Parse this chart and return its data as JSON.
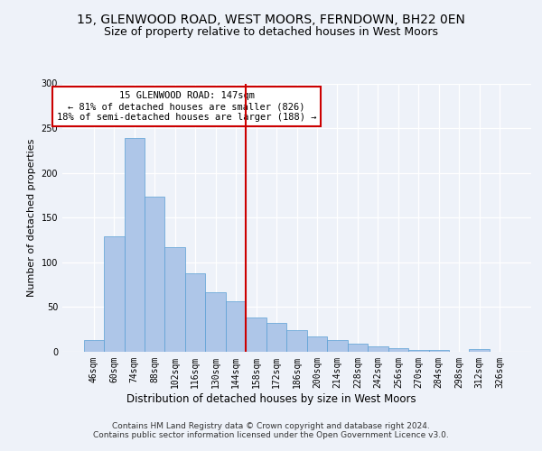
{
  "title1": "15, GLENWOOD ROAD, WEST MOORS, FERNDOWN, BH22 0EN",
  "title2": "Size of property relative to detached houses in West Moors",
  "xlabel": "Distribution of detached houses by size in West Moors",
  "ylabel": "Number of detached properties",
  "footer1": "Contains HM Land Registry data © Crown copyright and database right 2024.",
  "footer2": "Contains public sector information licensed under the Open Government Licence v3.0.",
  "bar_labels": [
    "46sqm",
    "60sqm",
    "74sqm",
    "88sqm",
    "102sqm",
    "116sqm",
    "130sqm",
    "144sqm",
    "158sqm",
    "172sqm",
    "186sqm",
    "200sqm",
    "214sqm",
    "228sqm",
    "242sqm",
    "256sqm",
    "270sqm",
    "284sqm",
    "298sqm",
    "312sqm",
    "326sqm"
  ],
  "bar_values": [
    13,
    129,
    239,
    173,
    117,
    88,
    67,
    56,
    38,
    32,
    24,
    17,
    13,
    9,
    6,
    4,
    2,
    2,
    0,
    3,
    0
  ],
  "bar_color": "#aec6e8",
  "bar_edge_color": "#5a9fd4",
  "vline_x_index": 7,
  "vline_color": "#cc0000",
  "annotation_text": "15 GLENWOOD ROAD: 147sqm\n← 81% of detached houses are smaller (826)\n18% of semi-detached houses are larger (188) →",
  "annotation_box_color": "#ffffff",
  "annotation_box_edge": "#cc0000",
  "ylim": [
    0,
    300
  ],
  "yticks": [
    0,
    50,
    100,
    150,
    200,
    250,
    300
  ],
  "bg_color": "#eef2f9",
  "plot_bg_color": "#eef2f9",
  "grid_color": "#ffffff",
  "title1_fontsize": 10,
  "title2_fontsize": 9,
  "xlabel_fontsize": 8.5,
  "ylabel_fontsize": 8,
  "tick_fontsize": 7,
  "footer_fontsize": 6.5,
  "annotation_fontsize": 7.5
}
